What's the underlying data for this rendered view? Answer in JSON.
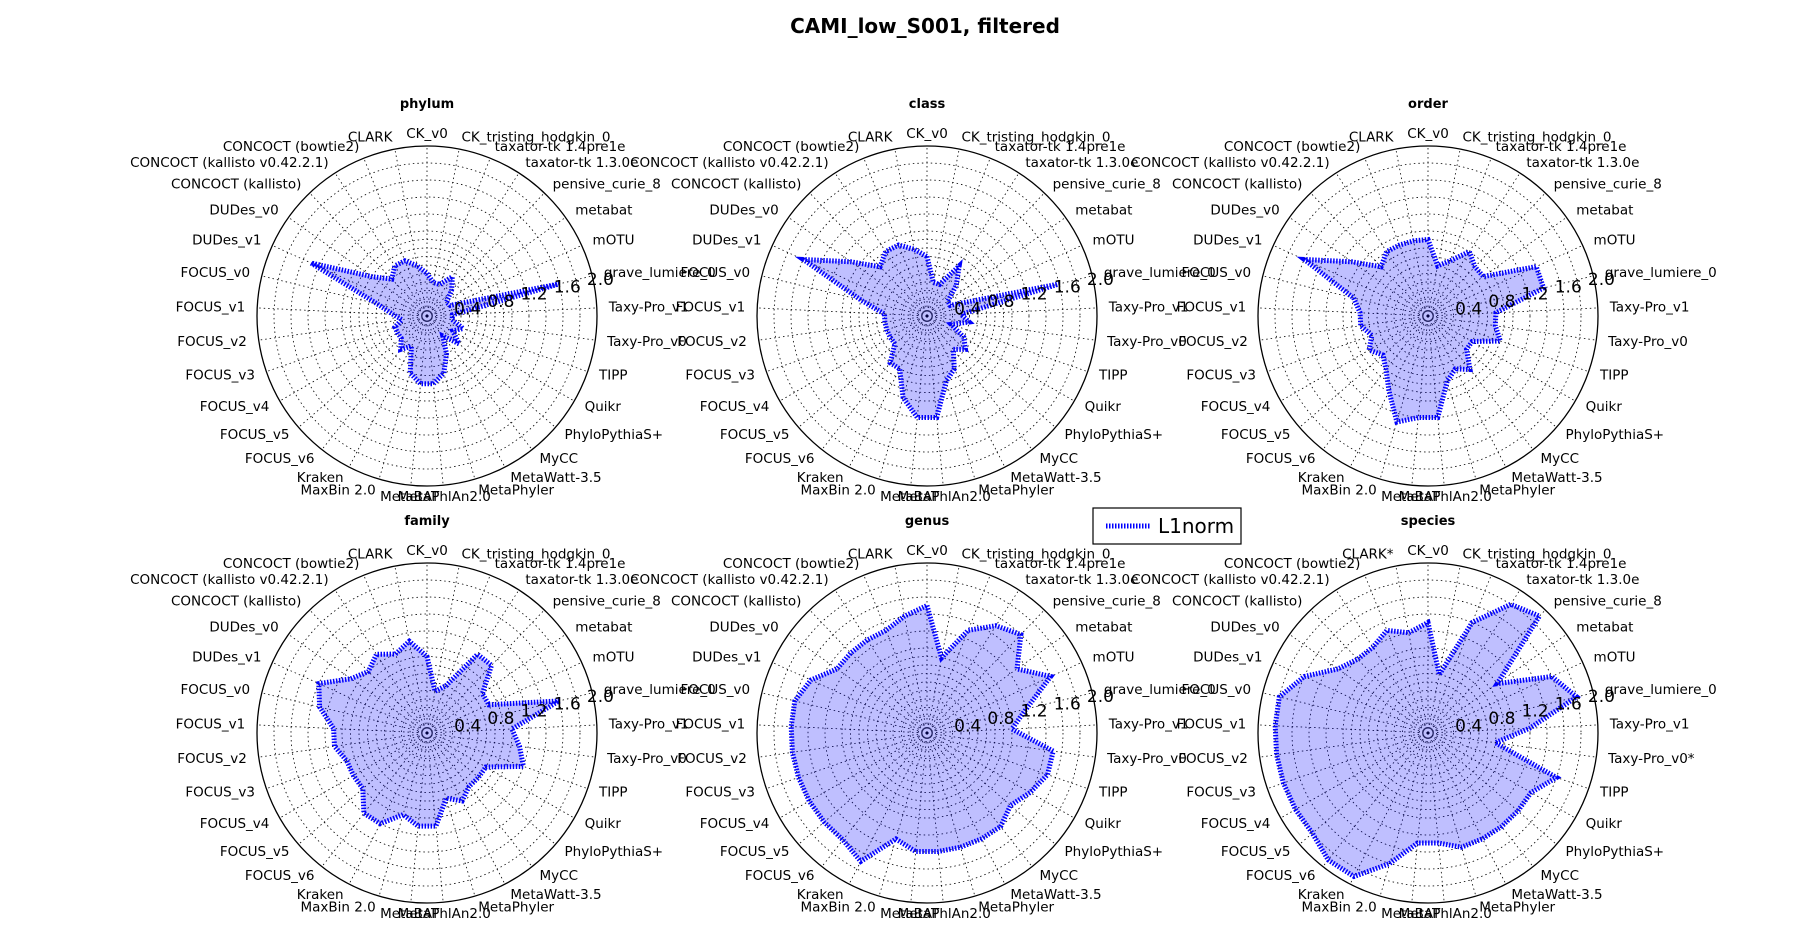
{
  "title": "CAMI_low_S001, filtered",
  "legend": {
    "label": "L1norm",
    "color": "#0000ff"
  },
  "chart_data": {
    "type": "radar",
    "rmax": 2.0,
    "r_ticks": [
      0.4,
      0.8,
      1.2,
      1.6,
      2.0
    ],
    "categories": [
      "CK_v0",
      "CK_tristing_hodgkin_0",
      "taxator-tk 1.4pre1e",
      "taxator-tk 1.3.0e",
      "pensive_curie_8",
      "metabat",
      "mOTU",
      "grave_lumiere_0",
      "Taxy-Pro_v1",
      "Taxy-Pro_v0",
      "TIPP",
      "Quikr",
      "PhyloPythiaS+",
      "MyCC",
      "MetaWatt-3.5",
      "MetaPhyler",
      "MetaPhlAn2.0",
      "MetaBAT",
      "MaxBin 2.0",
      "Kraken",
      "FOCUS_v6",
      "FOCUS_v5",
      "FOCUS_v4",
      "FOCUS_v3",
      "FOCUS_v2",
      "FOCUS_v1",
      "FOCUS_v0",
      "DUDes_v1",
      "DUDes_v0",
      "CONCOCT (kallisto)",
      "CONCOCT (kallisto v0.42.2.1)",
      "CONCOCT (bowtie2)",
      "CLARK"
    ],
    "panels": [
      {
        "title": "phylum",
        "values": [
          0.5,
          0.4,
          0.4,
          0.55,
          0.42,
          0.28,
          0.3,
          1.6,
          0.3,
          0.3,
          0.45,
          0.35,
          0.5,
          0.3,
          0.5,
          0.7,
          0.8,
          0.8,
          0.7,
          0.4,
          0.5,
          0.4,
          0.4,
          0.4,
          0.3,
          0.4,
          0.6,
          1.5,
          0.8,
          0.6,
          0.7,
          0.7,
          0.6
        ],
        "highlight": []
      },
      {
        "title": "class",
        "values": [
          0.7,
          0.4,
          0.4,
          0.7,
          0.5,
          0.3,
          0.3,
          1.6,
          0.4,
          0.5,
          0.3,
          0.5,
          0.6,
          0.5,
          0.7,
          0.8,
          1.2,
          1.2,
          1.0,
          0.7,
          0.7,
          0.5,
          0.5,
          0.5,
          0.5,
          0.5,
          0.8,
          1.6,
          1.1,
          0.8,
          0.9,
          0.9,
          0.8
        ],
        "highlight": []
      },
      {
        "title": "order",
        "values": [
          0.9,
          0.6,
          0.7,
          0.9,
          0.8,
          0.8,
          1.4,
          1.4,
          0.8,
          0.8,
          0.9,
          0.6,
          0.6,
          0.8,
          0.7,
          0.8,
          1.2,
          1.2,
          1.3,
          1.0,
          0.8,
          0.7,
          0.8,
          0.7,
          0.8,
          0.8,
          0.9,
          1.6,
          1.1,
          0.8,
          0.9,
          0.9,
          0.9
        ],
        "highlight": []
      },
      {
        "title": "family",
        "values": [
          0.9,
          0.5,
          0.6,
          1.1,
          1.1,
          0.8,
          0.8,
          1.6,
          1.0,
          1.1,
          1.2,
          0.8,
          0.8,
          0.8,
          0.9,
          0.8,
          1.1,
          1.1,
          1.0,
          1.2,
          1.2,
          1.0,
          1.0,
          1.0,
          1.1,
          1.1,
          1.3,
          1.4,
          1.1,
          1.0,
          1.1,
          1.0,
          1.1
        ],
        "highlight": []
      },
      {
        "title": "genus",
        "values": [
          1.5,
          0.9,
          1.3,
          1.5,
          1.6,
          1.3,
          1.6,
          1.2,
          1.0,
          1.5,
          1.5,
          1.4,
          1.3,
          1.4,
          1.4,
          1.4,
          1.4,
          1.4,
          1.3,
          1.7,
          1.6,
          1.6,
          1.6,
          1.6,
          1.6,
          1.6,
          1.6,
          1.5,
          1.3,
          1.3,
          1.3,
          1.3,
          1.4
        ],
        "highlight": []
      },
      {
        "title": "species",
        "values": [
          1.3,
          0.7,
          1.4,
          1.8,
          1.9,
          1.0,
          1.6,
          1.8,
          1.2,
          0.8,
          1.6,
          1.4,
          1.4,
          1.4,
          1.4,
          1.4,
          1.3,
          1.3,
          1.6,
          1.9,
          1.9,
          1.8,
          1.8,
          1.8,
          1.8,
          1.8,
          1.8,
          1.6,
          1.3,
          1.2,
          1.2,
          1.3,
          1.2
        ],
        "highlight": [
          "CLARK",
          "Taxy-Pro_v0"
        ]
      }
    ]
  }
}
